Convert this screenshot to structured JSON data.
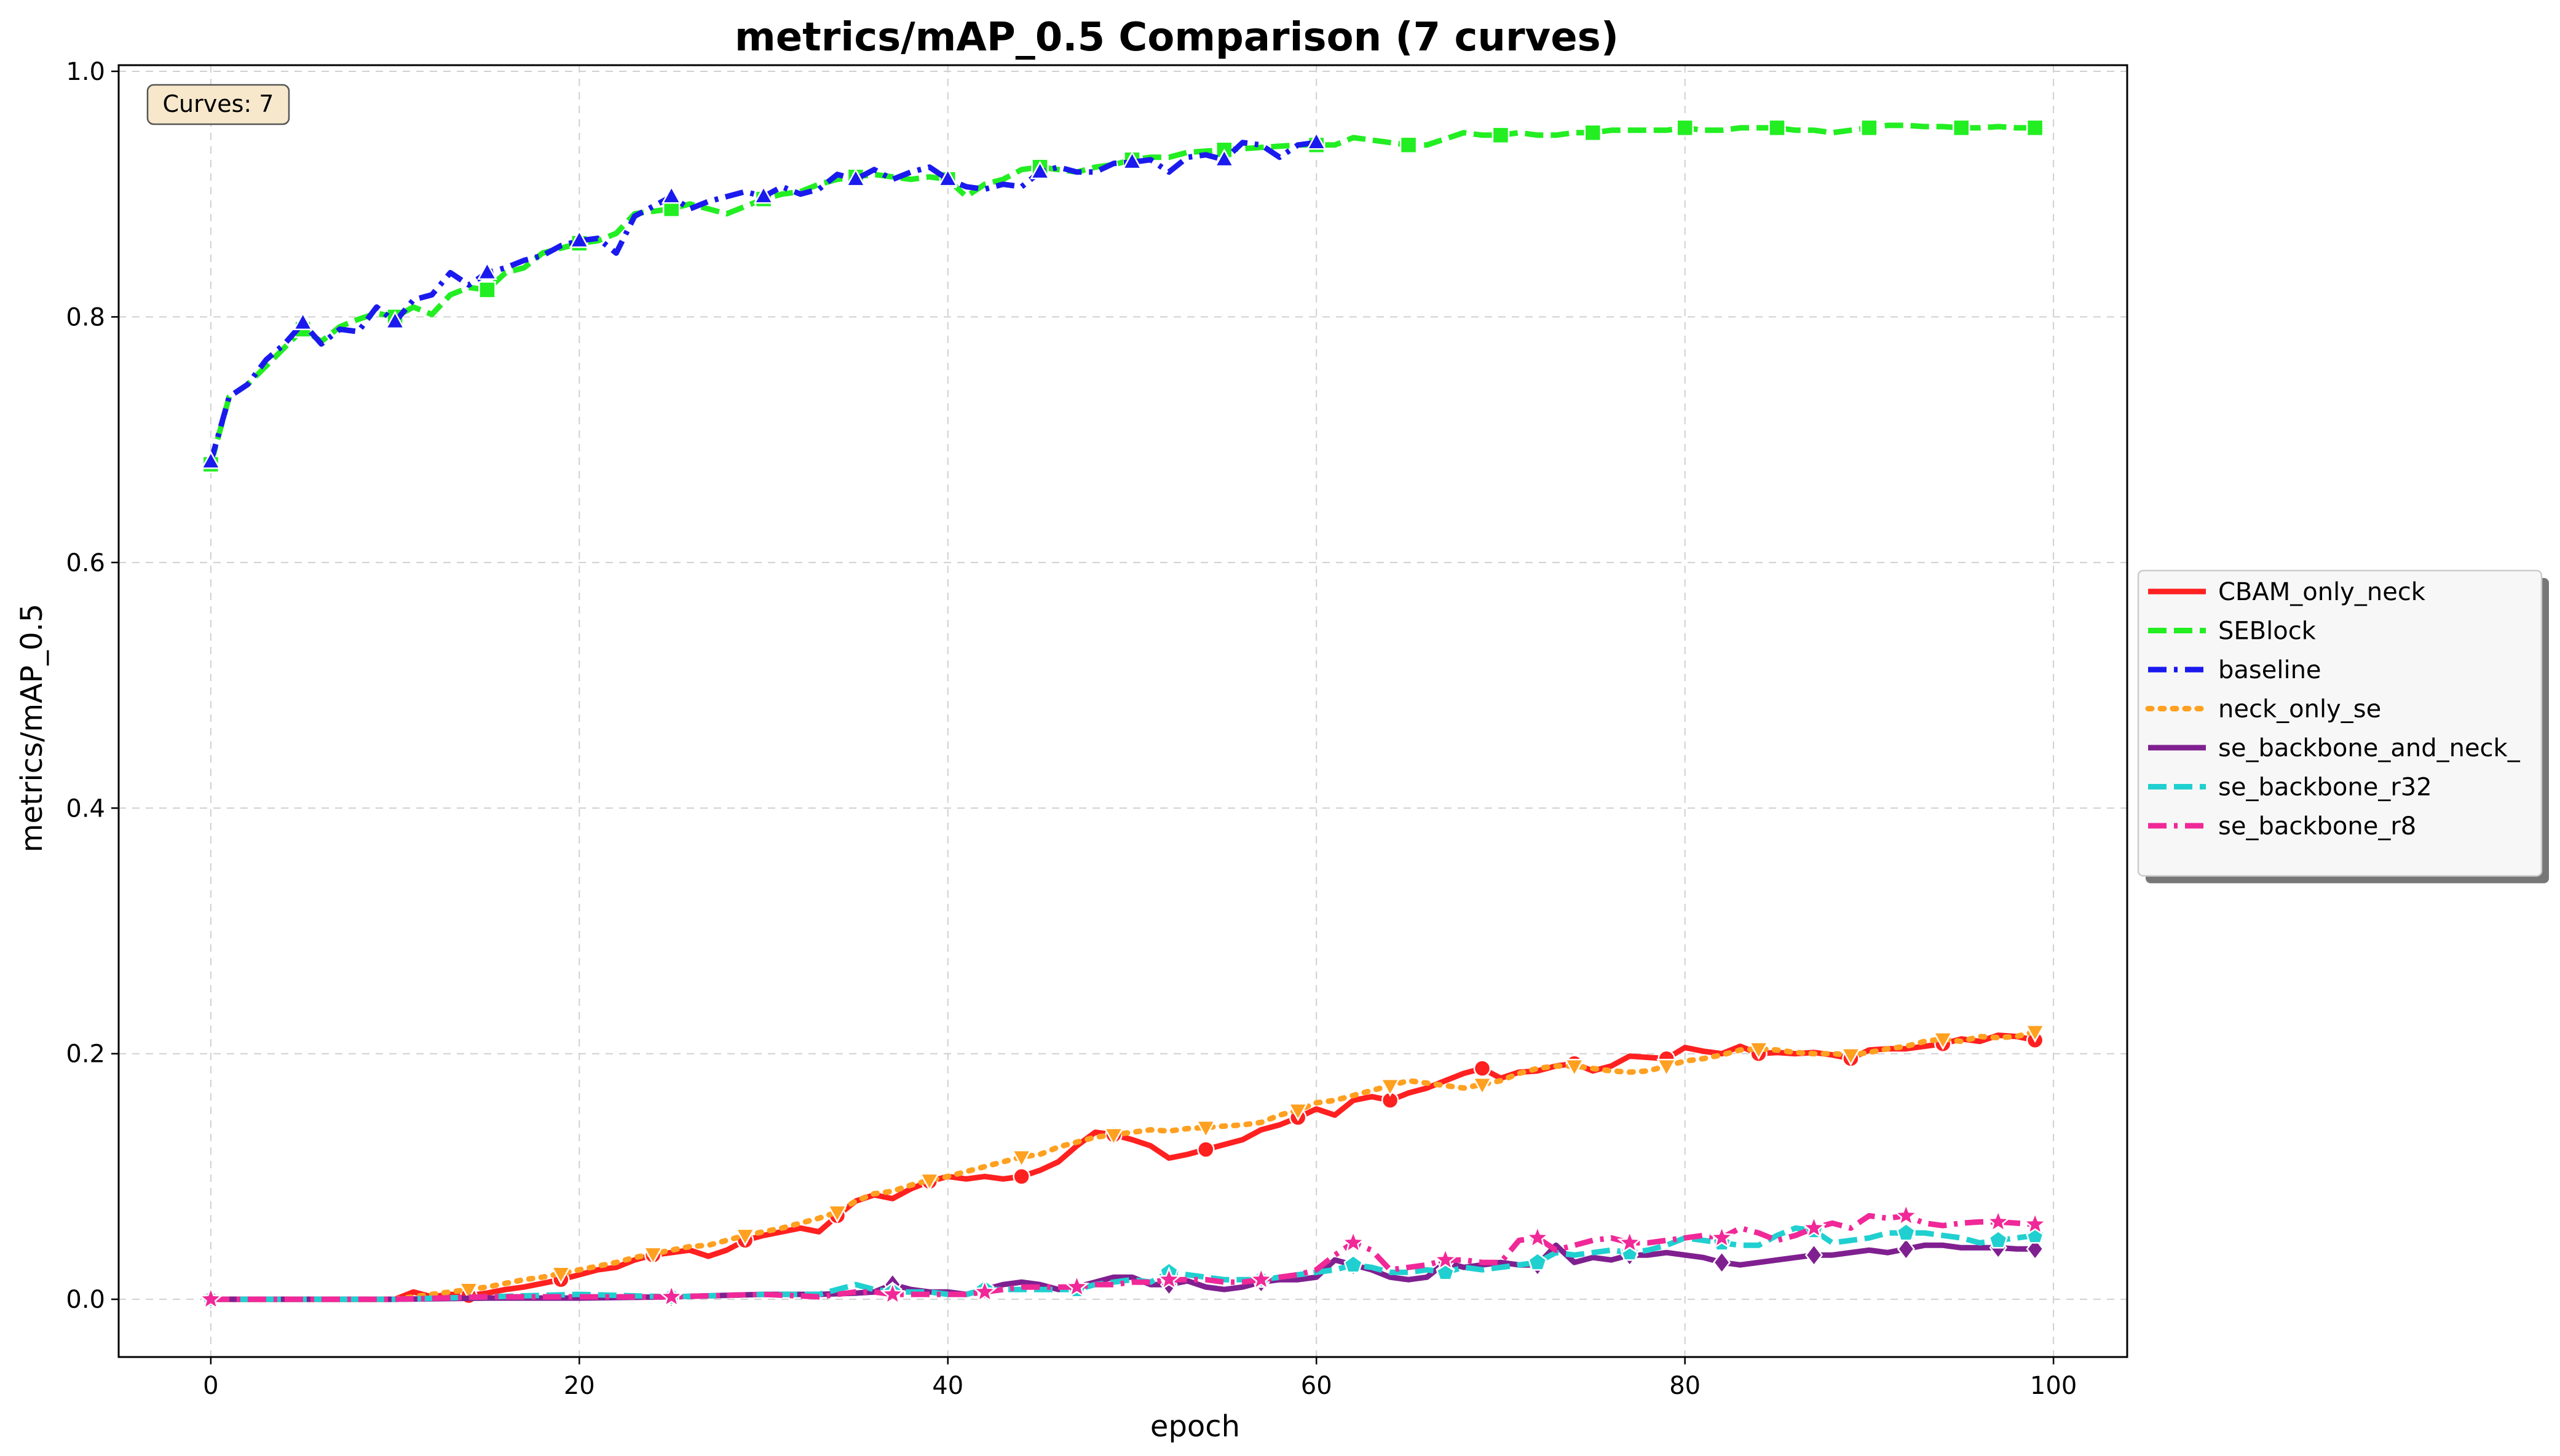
{
  "chart_data": {
    "type": "line",
    "title": "metrics/mAP_0.5 Comparison (7 curves)",
    "xlabel": "epoch",
    "ylabel": "metrics/mAP_0.5",
    "xlim": [
      -5,
      104
    ],
    "ylim": [
      -0.047,
      1.005
    ],
    "xticks": [
      0,
      20,
      40,
      60,
      80,
      100
    ],
    "yticks": [
      0.0,
      0.2,
      0.4,
      0.6,
      0.8,
      1.0
    ],
    "xtick_labels": [
      "0",
      "20",
      "40",
      "60",
      "80",
      "100"
    ],
    "ytick_labels": [
      "0.0",
      "0.2",
      "0.4",
      "0.6",
      "0.8",
      "1.0"
    ],
    "grid": true,
    "legend_position": "outside-right",
    "annotation": "Curves: 7",
    "series": [
      {
        "name": "CBAM_only_neck",
        "color": "#ff2020",
        "dash": "solid",
        "marker": "circle",
        "x": [
          0,
          10,
          11,
          12,
          13,
          14,
          15,
          16,
          17,
          18,
          19,
          20,
          21,
          22,
          23,
          24,
          25,
          26,
          27,
          28,
          29,
          30,
          31,
          32,
          33,
          34,
          35,
          36,
          37,
          38,
          39,
          40,
          41,
          42,
          43,
          44,
          45,
          46,
          47,
          48,
          49,
          50,
          51,
          52,
          53,
          54,
          55,
          56,
          57,
          58,
          59,
          60,
          61,
          62,
          63,
          64,
          65,
          66,
          67,
          68,
          69,
          70,
          71,
          72,
          73,
          74,
          75,
          76,
          77,
          78,
          79,
          80,
          81,
          82,
          83,
          84,
          85,
          86,
          87,
          88,
          89,
          90,
          91,
          92,
          93,
          94,
          95,
          96,
          97,
          98,
          99
        ],
        "y": [
          0,
          0,
          0.006,
          0.002,
          0.004,
          0.003,
          0.005,
          0.008,
          0.01,
          0.013,
          0.016,
          0.02,
          0.024,
          0.026,
          0.032,
          0.036,
          0.038,
          0.04,
          0.035,
          0.04,
          0.048,
          0.052,
          0.055,
          0.058,
          0.055,
          0.068,
          0.08,
          0.085,
          0.082,
          0.09,
          0.096,
          0.1,
          0.098,
          0.1,
          0.098,
          0.1,
          0.105,
          0.112,
          0.125,
          0.136,
          0.134,
          0.13,
          0.125,
          0.115,
          0.118,
          0.122,
          0.126,
          0.13,
          0.138,
          0.142,
          0.148,
          0.155,
          0.15,
          0.162,
          0.165,
          0.162,
          0.168,
          0.172,
          0.178,
          0.184,
          0.188,
          0.18,
          0.185,
          0.186,
          0.19,
          0.192,
          0.186,
          0.19,
          0.198,
          0.197,
          0.196,
          0.205,
          0.202,
          0.2,
          0.206,
          0.2,
          0.201,
          0.2,
          0.201,
          0.199,
          0.196,
          0.203,
          0.204,
          0.204,
          0.206,
          0.208,
          0.212,
          0.21,
          0.215,
          0.214,
          0.211
        ]
      },
      {
        "name": "SEBlock",
        "color": "#22ee22",
        "dash": "dashed",
        "marker": "square",
        "x": [
          0,
          1,
          2,
          3,
          4,
          5,
          6,
          7,
          8,
          9,
          10,
          11,
          12,
          13,
          14,
          15,
          16,
          17,
          18,
          19,
          20,
          21,
          22,
          23,
          24,
          25,
          26,
          27,
          28,
          29,
          30,
          31,
          32,
          33,
          34,
          35,
          36,
          37,
          38,
          39,
          40,
          41,
          42,
          43,
          44,
          45,
          46,
          47,
          48,
          49,
          50,
          51,
          52,
          53,
          54,
          55,
          56,
          57,
          58,
          59,
          60,
          61,
          62,
          63,
          64,
          65,
          66,
          67,
          68,
          69,
          70,
          71,
          72,
          73,
          74,
          75,
          76,
          77,
          78,
          79,
          80,
          81,
          82,
          83,
          84,
          85,
          86,
          87,
          88,
          89,
          90,
          91,
          92,
          93,
          94,
          95,
          96,
          97,
          98,
          99
        ],
        "y": [
          0.68,
          0.735,
          0.745,
          0.76,
          0.775,
          0.79,
          0.78,
          0.792,
          0.798,
          0.803,
          0.8,
          0.808,
          0.802,
          0.818,
          0.824,
          0.822,
          0.836,
          0.84,
          0.852,
          0.856,
          0.86,
          0.862,
          0.868,
          0.884,
          0.886,
          0.888,
          0.892,
          0.888,
          0.884,
          0.89,
          0.896,
          0.9,
          0.902,
          0.908,
          0.912,
          0.914,
          0.916,
          0.914,
          0.912,
          0.914,
          0.912,
          0.898,
          0.908,
          0.912,
          0.92,
          0.922,
          0.92,
          0.918,
          0.922,
          0.924,
          0.928,
          0.93,
          0.93,
          0.934,
          0.935,
          0.936,
          0.937,
          0.938,
          0.939,
          0.94,
          0.94,
          0.94,
          0.946,
          0.944,
          0.942,
          0.94,
          0.94,
          0.945,
          0.95,
          0.948,
          0.948,
          0.95,
          0.948,
          0.948,
          0.95,
          0.95,
          0.952,
          0.952,
          0.952,
          0.952,
          0.954,
          0.952,
          0.952,
          0.954,
          0.954,
          0.954,
          0.952,
          0.952,
          0.95,
          0.952,
          0.954,
          0.956,
          0.956,
          0.955,
          0.955,
          0.954,
          0.954,
          0.955,
          0.954,
          0.954
        ]
      },
      {
        "name": "baseline",
        "color": "#1a1aee",
        "dash": "dashdot",
        "marker": "triangle",
        "x": [
          0,
          1,
          2,
          3,
          4,
          5,
          6,
          7,
          8,
          9,
          10,
          11,
          12,
          13,
          14,
          15,
          16,
          17,
          18,
          19,
          20,
          21,
          22,
          23,
          24,
          25,
          26,
          27,
          28,
          29,
          30,
          31,
          32,
          33,
          34,
          35,
          36,
          37,
          38,
          39,
          40,
          41,
          42,
          43,
          44,
          45,
          46,
          47,
          48,
          49,
          50,
          51,
          52,
          53,
          54,
          55,
          56,
          57,
          58,
          59,
          60
        ],
        "y": [
          0.682,
          0.735,
          0.745,
          0.765,
          0.778,
          0.795,
          0.778,
          0.79,
          0.788,
          0.808,
          0.796,
          0.814,
          0.818,
          0.836,
          0.826,
          0.836,
          0.84,
          0.846,
          0.85,
          0.858,
          0.862,
          0.864,
          0.852,
          0.882,
          0.89,
          0.898,
          0.888,
          0.894,
          0.898,
          0.902,
          0.898,
          0.906,
          0.9,
          0.904,
          0.916,
          0.912,
          0.92,
          0.912,
          0.918,
          0.922,
          0.912,
          0.906,
          0.904,
          0.908,
          0.906,
          0.918,
          0.922,
          0.918,
          0.918,
          0.925,
          0.926,
          0.928,
          0.918,
          0.93,
          0.932,
          0.928,
          0.942,
          0.94,
          0.93,
          0.94,
          0.942
        ]
      },
      {
        "name": "neck_only_se",
        "color": "#ffa020",
        "dash": "dotted",
        "marker": "triangle-down",
        "x": [
          0,
          10,
          11,
          12,
          13,
          14,
          15,
          16,
          17,
          18,
          19,
          20,
          21,
          22,
          23,
          24,
          25,
          26,
          27,
          28,
          29,
          30,
          31,
          32,
          33,
          34,
          35,
          36,
          37,
          38,
          39,
          40,
          41,
          42,
          43,
          44,
          45,
          46,
          47,
          48,
          49,
          50,
          51,
          52,
          53,
          54,
          55,
          56,
          57,
          58,
          59,
          60,
          61,
          62,
          63,
          64,
          65,
          66,
          67,
          68,
          69,
          70,
          71,
          72,
          73,
          74,
          75,
          76,
          77,
          78,
          79,
          80,
          81,
          82,
          83,
          84,
          85,
          86,
          87,
          88,
          89,
          90,
          91,
          92,
          93,
          94,
          95,
          96,
          97,
          98,
          99
        ],
        "y": [
          0,
          0,
          0.002,
          0.004,
          0.006,
          0.008,
          0.01,
          0.013,
          0.016,
          0.018,
          0.021,
          0.024,
          0.027,
          0.03,
          0.034,
          0.037,
          0.04,
          0.043,
          0.044,
          0.048,
          0.052,
          0.055,
          0.058,
          0.062,
          0.066,
          0.071,
          0.08,
          0.086,
          0.088,
          0.093,
          0.097,
          0.1,
          0.104,
          0.108,
          0.112,
          0.116,
          0.118,
          0.124,
          0.128,
          0.132,
          0.134,
          0.136,
          0.138,
          0.137,
          0.139,
          0.14,
          0.141,
          0.142,
          0.144,
          0.15,
          0.154,
          0.16,
          0.162,
          0.166,
          0.17,
          0.174,
          0.178,
          0.176,
          0.174,
          0.172,
          0.175,
          0.178,
          0.184,
          0.188,
          0.19,
          0.19,
          0.188,
          0.186,
          0.185,
          0.186,
          0.19,
          0.194,
          0.196,
          0.199,
          0.203,
          0.204,
          0.203,
          0.201,
          0.2,
          0.2,
          0.199,
          0.201,
          0.204,
          0.206,
          0.21,
          0.212,
          0.21,
          0.214,
          0.213,
          0.214,
          0.218
        ]
      },
      {
        "name": "se_backbone_and_neck_",
        "color": "#802090",
        "dash": "solid",
        "marker": "diamond",
        "x": [
          0,
          5,
          10,
          15,
          20,
          25,
          30,
          33,
          35,
          36,
          37,
          38,
          39,
          40,
          41,
          42,
          43,
          44,
          45,
          46,
          47,
          48,
          49,
          50,
          51,
          52,
          53,
          54,
          55,
          56,
          57,
          58,
          59,
          60,
          61,
          62,
          63,
          64,
          65,
          66,
          67,
          68,
          69,
          70,
          71,
          72,
          73,
          74,
          75,
          76,
          77,
          78,
          79,
          80,
          81,
          82,
          83,
          84,
          85,
          86,
          87,
          88,
          89,
          90,
          91,
          92,
          93,
          94,
          95,
          96,
          97,
          98,
          99
        ],
        "y": [
          0,
          0,
          0,
          0.001,
          0.001,
          0.002,
          0.004,
          0.004,
          0.005,
          0.006,
          0.012,
          0.008,
          0.006,
          0.006,
          0.004,
          0.008,
          0.012,
          0.014,
          0.012,
          0.008,
          0.01,
          0.014,
          0.018,
          0.018,
          0.012,
          0.012,
          0.015,
          0.01,
          0.008,
          0.01,
          0.014,
          0.016,
          0.016,
          0.018,
          0.032,
          0.028,
          0.024,
          0.018,
          0.016,
          0.018,
          0.03,
          0.026,
          0.028,
          0.03,
          0.028,
          0.028,
          0.044,
          0.03,
          0.034,
          0.032,
          0.036,
          0.036,
          0.038,
          0.036,
          0.034,
          0.03,
          0.028,
          0.03,
          0.032,
          0.034,
          0.036,
          0.036,
          0.038,
          0.04,
          0.038,
          0.041,
          0.044,
          0.044,
          0.042,
          0.042,
          0.042,
          0.041,
          0.041
        ]
      },
      {
        "name": "se_backbone_r32",
        "color": "#20d0d0",
        "dash": "dashed",
        "marker": "pentagon",
        "x": [
          0,
          5,
          10,
          15,
          20,
          25,
          30,
          33,
          35,
          36,
          37,
          38,
          39,
          40,
          41,
          42,
          43,
          44,
          45,
          46,
          47,
          48,
          49,
          50,
          51,
          52,
          53,
          54,
          55,
          56,
          57,
          58,
          59,
          60,
          61,
          62,
          63,
          64,
          65,
          66,
          67,
          68,
          69,
          70,
          71,
          72,
          73,
          74,
          75,
          76,
          77,
          78,
          79,
          80,
          81,
          82,
          83,
          84,
          85,
          86,
          87,
          88,
          89,
          90,
          91,
          92,
          93,
          94,
          95,
          96,
          97,
          98,
          99
        ],
        "y": [
          0,
          0,
          0,
          0.002,
          0.004,
          0.002,
          0.004,
          0.004,
          0.012,
          0.008,
          0.006,
          0.006,
          0.006,
          0.004,
          0.004,
          0.008,
          0.008,
          0.008,
          0.008,
          0.008,
          0.008,
          0.012,
          0.014,
          0.016,
          0.014,
          0.022,
          0.02,
          0.018,
          0.016,
          0.016,
          0.016,
          0.018,
          0.02,
          0.022,
          0.024,
          0.028,
          0.026,
          0.022,
          0.022,
          0.024,
          0.022,
          0.026,
          0.024,
          0.026,
          0.028,
          0.03,
          0.038,
          0.036,
          0.038,
          0.04,
          0.038,
          0.04,
          0.044,
          0.05,
          0.048,
          0.046,
          0.044,
          0.044,
          0.052,
          0.058,
          0.056,
          0.046,
          0.048,
          0.05,
          0.054,
          0.054,
          0.054,
          0.052,
          0.05,
          0.046,
          0.048,
          0.05,
          0.052
        ]
      },
      {
        "name": "se_backbone_r8",
        "color": "#f02898",
        "dash": "dashdot",
        "marker": "star",
        "x": [
          0,
          5,
          10,
          15,
          20,
          25,
          30,
          33,
          35,
          36,
          37,
          38,
          39,
          40,
          41,
          42,
          43,
          44,
          45,
          46,
          47,
          48,
          49,
          50,
          51,
          52,
          53,
          54,
          55,
          56,
          57,
          58,
          59,
          60,
          61,
          62,
          63,
          64,
          65,
          66,
          67,
          68,
          69,
          70,
          71,
          72,
          73,
          74,
          75,
          76,
          77,
          78,
          79,
          80,
          81,
          82,
          83,
          84,
          85,
          86,
          87,
          88,
          89,
          90,
          91,
          92,
          93,
          94,
          95,
          96,
          97,
          98,
          99
        ],
        "y": [
          0,
          0,
          0,
          0.002,
          0.002,
          0.002,
          0.004,
          0.002,
          0.006,
          0.006,
          0.004,
          0.004,
          0.004,
          0.004,
          0.004,
          0.006,
          0.008,
          0.01,
          0.01,
          0.01,
          0.01,
          0.012,
          0.012,
          0.014,
          0.014,
          0.016,
          0.016,
          0.016,
          0.014,
          0.014,
          0.016,
          0.018,
          0.02,
          0.024,
          0.036,
          0.046,
          0.04,
          0.024,
          0.026,
          0.028,
          0.032,
          0.032,
          0.03,
          0.03,
          0.048,
          0.05,
          0.04,
          0.044,
          0.048,
          0.05,
          0.046,
          0.046,
          0.048,
          0.05,
          0.052,
          0.05,
          0.058,
          0.054,
          0.048,
          0.052,
          0.058,
          0.062,
          0.058,
          0.068,
          0.066,
          0.068,
          0.062,
          0.06,
          0.062,
          0.063,
          0.063,
          0.062,
          0.061
        ]
      }
    ]
  }
}
